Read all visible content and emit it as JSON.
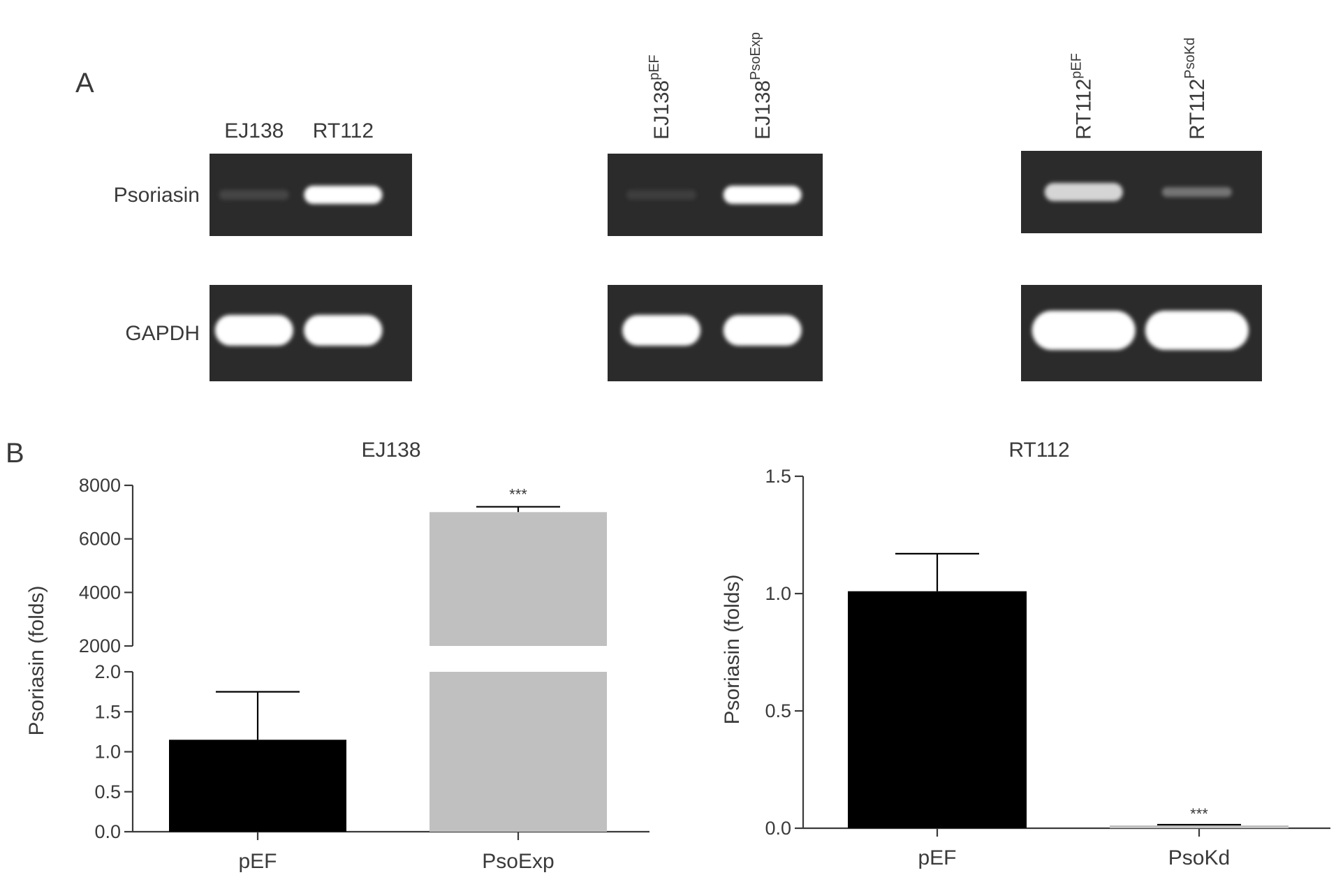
{
  "panels": {
    "a": "A",
    "b": "B"
  },
  "gels": [
    {
      "lanes": [
        {
          "main": "EJ138",
          "sup": ""
        },
        {
          "main": "RT112",
          "sup": ""
        }
      ],
      "rotated": false,
      "rows": [
        {
          "label": "Psoriasin",
          "band_intensity": [
            0.12,
            1.0
          ]
        },
        {
          "label": "GAPDH",
          "band_intensity": [
            1.0,
            1.0
          ]
        }
      ]
    },
    {
      "lanes": [
        {
          "main": "EJ138",
          "sup": "pEF"
        },
        {
          "main": "EJ138",
          "sup": "PsoExp"
        }
      ],
      "rotated": true,
      "rows": [
        {
          "label": "",
          "band_intensity": [
            0.08,
            1.0
          ]
        },
        {
          "label": "",
          "band_intensity": [
            1.0,
            1.0
          ]
        }
      ]
    },
    {
      "lanes": [
        {
          "main": "RT112",
          "sup": "pEF"
        },
        {
          "main": "RT112",
          "sup": "PsoKd"
        }
      ],
      "rotated": true,
      "rows": [
        {
          "label": "",
          "band_intensity": [
            0.8,
            0.35
          ]
        },
        {
          "label": "",
          "band_intensity": [
            1.0,
            1.0
          ]
        }
      ]
    }
  ],
  "chart_data": [
    {
      "type": "bar",
      "title": "EJ138",
      "xlabel": "",
      "ylabel": "Psoriasin (folds)",
      "categories": [
        "pEF",
        "PsoExp"
      ],
      "values": [
        1.15,
        7000
      ],
      "errors": [
        0.6,
        200
      ],
      "significance": [
        "",
        "***"
      ],
      "bar_colors": [
        "#000000",
        "#c0c0c0"
      ],
      "broken_axis": true,
      "lower_ylim": [
        0,
        2.0
      ],
      "lower_ticks": [
        "0.0",
        "0.5",
        "1.0",
        "1.5",
        "2.0"
      ],
      "upper_ylim": [
        2000,
        8000
      ],
      "upper_ticks": [
        "2000",
        "4000",
        "6000",
        "8000"
      ]
    },
    {
      "type": "bar",
      "title": "RT112",
      "xlabel": "",
      "ylabel": "Psoriasin (folds)",
      "categories": [
        "pEF",
        "PsoKd"
      ],
      "values": [
        1.01,
        0.01
      ],
      "errors": [
        0.16,
        0.005
      ],
      "significance": [
        "",
        "***"
      ],
      "bar_colors": [
        "#000000",
        "#c0c0c0"
      ],
      "broken_axis": false,
      "ylim": [
        0,
        1.5
      ],
      "ticks": [
        "0.0",
        "0.5",
        "1.0",
        "1.5"
      ]
    }
  ]
}
